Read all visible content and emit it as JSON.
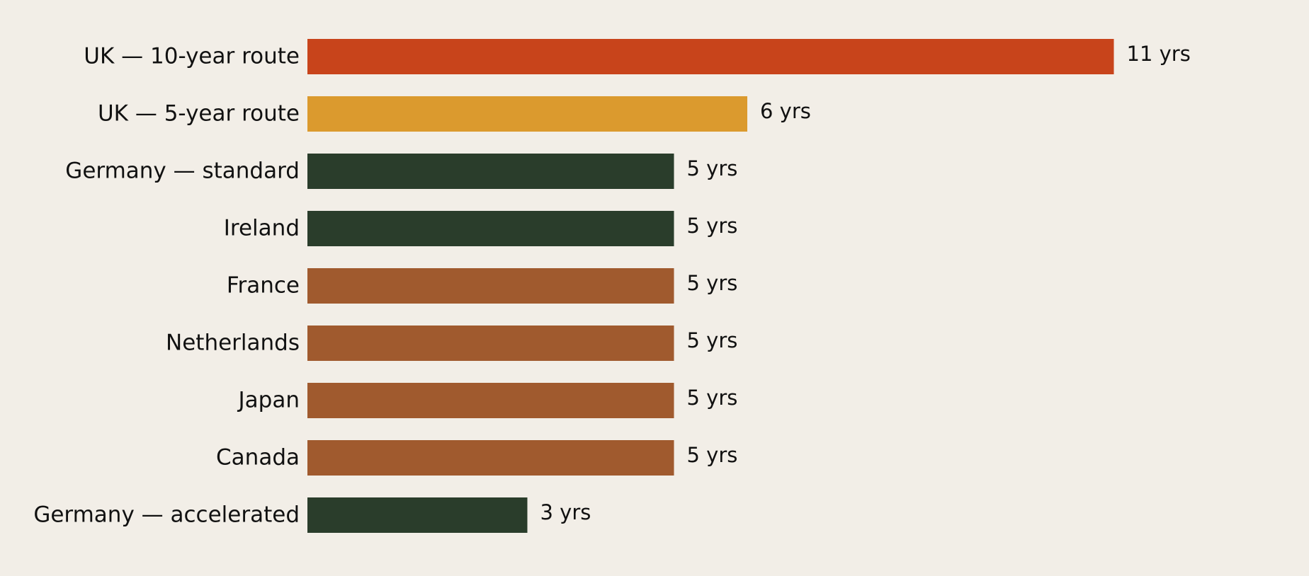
{
  "chart_data": {
    "type": "bar",
    "orientation": "horizontal",
    "categories": [
      "UK — 10-year route",
      "UK — 5-year route",
      "Germany — standard",
      "Ireland",
      "France",
      "Netherlands",
      "Japan",
      "Canada",
      "Germany — accelerated"
    ],
    "values": [
      11,
      6,
      5,
      5,
      5,
      5,
      5,
      5,
      3
    ],
    "value_labels": [
      "11 yrs",
      "6 yrs",
      "5 yrs",
      "5 yrs",
      "5 yrs",
      "5 yrs",
      "5 yrs",
      "5 yrs",
      "3 yrs"
    ],
    "colors": [
      "#c8441b",
      "#db9a2e",
      "#2a3d2b",
      "#2a3d2b",
      "#a05a2e",
      "#a05a2e",
      "#a05a2e",
      "#a05a2e",
      "#2a3d2b"
    ],
    "title": "",
    "xlabel": "",
    "ylabel": "",
    "xlim": [
      0,
      11
    ],
    "grid": false,
    "legend": false
  }
}
